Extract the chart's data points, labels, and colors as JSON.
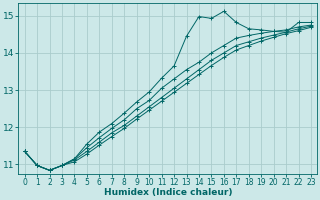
{
  "xlabel": "Humidex (Indice chaleur)",
  "background_color": "#cce8e8",
  "grid_color": "#aacccc",
  "line_color": "#006666",
  "xlim": [
    -0.5,
    23.5
  ],
  "ylim": [
    10.75,
    15.35
  ],
  "yticks": [
    11,
    12,
    13,
    14,
    15
  ],
  "xticks": [
    0,
    1,
    2,
    3,
    4,
    5,
    6,
    7,
    8,
    9,
    10,
    11,
    12,
    13,
    14,
    15,
    16,
    17,
    18,
    19,
    20,
    21,
    22,
    23
  ],
  "series1_x": [
    0,
    1,
    2,
    3,
    4,
    5,
    6,
    7,
    8,
    9,
    10,
    11,
    12,
    13,
    14,
    15,
    16,
    17,
    18,
    19,
    20,
    21,
    22,
    23
  ],
  "series1_y": [
    11.35,
    10.97,
    10.84,
    10.97,
    11.15,
    11.45,
    11.72,
    11.97,
    12.2,
    12.5,
    12.72,
    13.05,
    13.3,
    13.55,
    13.75,
    14.0,
    14.2,
    14.4,
    14.47,
    14.53,
    14.58,
    14.62,
    14.7,
    14.75
  ],
  "series2_x": [
    0,
    1,
    2,
    3,
    4,
    5,
    6,
    7,
    8,
    9,
    10,
    11,
    12,
    13,
    14,
    15,
    16,
    17,
    18,
    19,
    20,
    21,
    22,
    23
  ],
  "series2_y": [
    11.35,
    10.97,
    10.84,
    10.97,
    11.12,
    11.35,
    11.6,
    11.85,
    12.05,
    12.3,
    12.55,
    12.8,
    13.05,
    13.3,
    13.55,
    13.8,
    14.0,
    14.2,
    14.3,
    14.4,
    14.48,
    14.56,
    14.65,
    14.72
  ],
  "series3_x": [
    0,
    1,
    2,
    3,
    4,
    5,
    6,
    7,
    8,
    9,
    10,
    11,
    12,
    13,
    14,
    15,
    16,
    17,
    18,
    19,
    20,
    21,
    22,
    23
  ],
  "series3_y": [
    11.35,
    10.97,
    10.84,
    10.97,
    11.07,
    11.28,
    11.52,
    11.75,
    11.97,
    12.22,
    12.46,
    12.7,
    12.94,
    13.18,
    13.42,
    13.66,
    13.88,
    14.08,
    14.2,
    14.32,
    14.42,
    14.52,
    14.6,
    14.69
  ],
  "series_jagged_x": [
    0,
    1,
    2,
    3,
    4,
    5,
    6,
    7,
    8,
    9,
    10,
    11,
    12,
    13,
    14,
    15,
    16,
    17,
    18,
    19,
    20,
    21,
    22,
    23
  ],
  "series_jagged_y": [
    11.35,
    10.97,
    10.84,
    10.97,
    11.15,
    11.55,
    11.87,
    12.1,
    12.38,
    12.68,
    12.95,
    13.32,
    13.65,
    14.45,
    14.98,
    14.93,
    15.12,
    14.82,
    14.65,
    14.62,
    14.58,
    14.56,
    14.82,
    14.82
  ]
}
